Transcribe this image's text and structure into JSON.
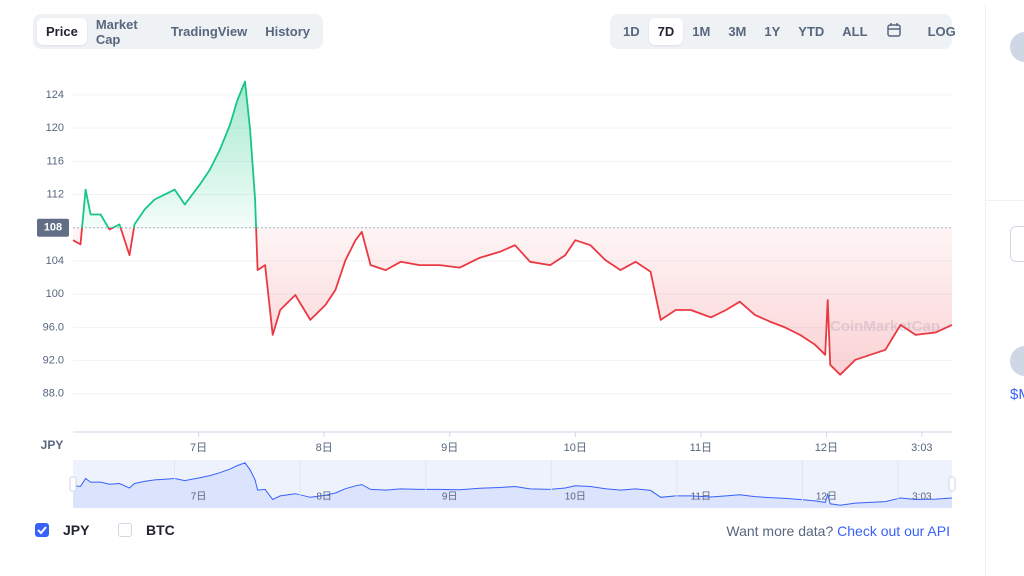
{
  "tabs": [
    "Price",
    "Market Cap",
    "TradingView",
    "History"
  ],
  "selected_tab": "Price",
  "ranges": [
    "1D",
    "7D",
    "1M",
    "3M",
    "1Y",
    "YTD",
    "ALL"
  ],
  "selected_range": "7D",
  "log_button": "LOG",
  "chart_data": {
    "type": "line",
    "y_axis_label": "JPY",
    "watermark": "CoinMarketCap",
    "x": [
      6.0,
      6.06,
      6.1,
      6.14,
      6.22,
      6.29,
      6.37,
      6.45,
      6.49,
      6.57,
      6.65,
      6.73,
      6.81,
      6.89,
      7.01,
      7.09,
      7.17,
      7.25,
      7.31,
      7.37,
      7.41,
      7.45,
      7.47,
      7.53,
      7.59,
      7.65,
      7.77,
      7.89,
      8.01,
      8.09,
      8.17,
      8.25,
      8.3,
      8.37,
      8.49,
      8.61,
      8.76,
      8.92,
      9.08,
      9.24,
      9.4,
      9.52,
      9.64,
      9.8,
      9.92,
      10.0,
      10.12,
      10.24,
      10.36,
      10.48,
      10.6,
      10.68,
      10.8,
      10.92,
      11.08,
      11.2,
      11.31,
      11.43,
      11.55,
      11.67,
      11.79,
      11.91,
      11.99,
      12.01,
      12.03,
      12.11,
      12.23,
      12.35,
      12.47,
      12.59,
      12.71,
      12.87,
      13.0
    ],
    "series": [
      {
        "name": "JPY",
        "color_up": "#16c784",
        "color_down": "#ea3943",
        "values": [
          106.5,
          106,
          112.6,
          109.6,
          109.6,
          107.8,
          108.4,
          104.7,
          108.4,
          110.2,
          111.4,
          112,
          112.6,
          110.8,
          113.2,
          115,
          117.4,
          120.4,
          123.4,
          125.6,
          119.8,
          111.4,
          102.9,
          103.5,
          95.1,
          98.1,
          99.9,
          96.9,
          98.7,
          100.5,
          104.1,
          106.5,
          107.5,
          103.5,
          102.9,
          103.9,
          103.5,
          103.5,
          103.2,
          104.4,
          105.1,
          105.9,
          103.9,
          103.5,
          104.7,
          106.5,
          105.9,
          104.1,
          102.9,
          103.9,
          102.7,
          96.9,
          98.1,
          98.1,
          97.2,
          98.1,
          99.1,
          97.5,
          96.7,
          96,
          95.1,
          93.9,
          92.7,
          99.3,
          91.5,
          90.3,
          92.1,
          92.7,
          93.3,
          96.3,
          95.1,
          95.4,
          96.3
        ]
      }
    ],
    "baseline": 108,
    "xlim": [
      6,
      13
    ],
    "xticks": [
      {
        "value": 7,
        "label": "7日"
      },
      {
        "value": 8,
        "label": "8日"
      },
      {
        "value": 9,
        "label": "9日"
      },
      {
        "value": 10,
        "label": "10日"
      },
      {
        "value": 11,
        "label": "11日"
      },
      {
        "value": 12,
        "label": "12日"
      },
      {
        "value": 12.76,
        "label": "3:03"
      }
    ],
    "ylim": [
      83.4,
      126.4
    ],
    "yticks": [
      {
        "value": 88,
        "label": "88.0"
      },
      {
        "value": 92,
        "label": "92.0"
      },
      {
        "value": 96,
        "label": "96.0"
      },
      100,
      104,
      112,
      116,
      120,
      124
    ],
    "grid": true,
    "navigator_ylim": [
      88,
      128
    ]
  },
  "legend": [
    "JPY",
    "BTC"
  ],
  "legend_checked": [
    "JPY"
  ],
  "footer": {
    "text": "Want more data?",
    "link": "Check out our API"
  },
  "sidebar_text": "$M"
}
